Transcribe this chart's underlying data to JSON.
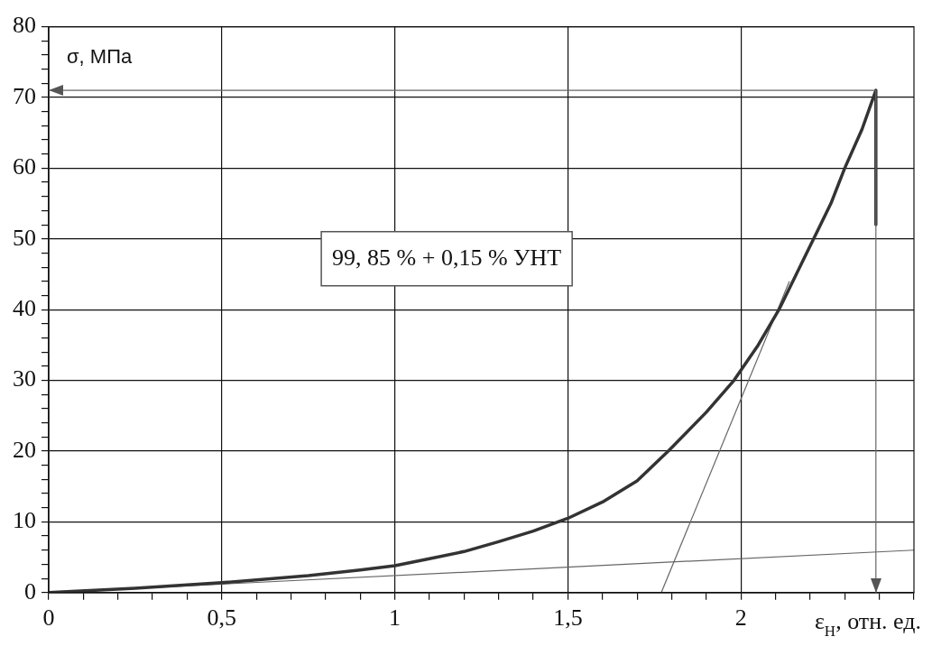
{
  "chart_data": {
    "type": "line",
    "xlabel": "ε$_{Н}$, отн. ед.",
    "ylabel": "σ, МПа",
    "xlim": [
      0,
      2.5
    ],
    "xticks": [
      0,
      {
        "value": 0.1,
        "label": null
      },
      {
        "value": 0.2,
        "label": null
      },
      {
        "value": 0.3,
        "label": null
      },
      {
        "value": 0.4,
        "label": null
      },
      {
        "value": 0.5,
        "label": "0,5"
      },
      {
        "value": 0.6,
        "label": null
      },
      {
        "value": 0.7,
        "label": null
      },
      {
        "value": 0.8,
        "label": null
      },
      {
        "value": 0.9,
        "label": null
      },
      1,
      {
        "value": 1.1,
        "label": null
      },
      {
        "value": 1.2,
        "label": null
      },
      {
        "value": 1.3,
        "label": null
      },
      {
        "value": 1.4,
        "label": null
      },
      {
        "value": 1.5,
        "label": "1,5"
      },
      {
        "value": 1.6,
        "label": null
      },
      {
        "value": 1.7,
        "label": null
      },
      {
        "value": 1.8,
        "label": null
      },
      {
        "value": 1.9,
        "label": null
      },
      2,
      {
        "value": 2.1,
        "label": null
      },
      {
        "value": 2.2,
        "label": null
      },
      {
        "value": 2.3,
        "label": null
      },
      {
        "value": 2.4,
        "label": null
      },
      {
        "value": 2.5,
        "label": null
      }
    ],
    "ylim": [
      0,
      80
    ],
    "yticks": [
      0,
      {
        "value": 2,
        "label": null
      },
      {
        "value": 4,
        "label": null
      },
      {
        "value": 6,
        "label": null
      },
      {
        "value": 8,
        "label": null
      },
      10,
      {
        "value": 12,
        "label": null
      },
      {
        "value": 14,
        "label": null
      },
      {
        "value": 16,
        "label": null
      },
      {
        "value": 18,
        "label": null
      },
      20,
      {
        "value": 22,
        "label": null
      },
      {
        "value": 24,
        "label": null
      },
      {
        "value": 26,
        "label": null
      },
      {
        "value": 28,
        "label": null
      },
      30,
      {
        "value": 32,
        "label": null
      },
      {
        "value": 34,
        "label": null
      },
      {
        "value": 36,
        "label": null
      },
      {
        "value": 38,
        "label": null
      },
      40,
      {
        "value": 42,
        "label": null
      },
      {
        "value": 44,
        "label": null
      },
      {
        "value": 46,
        "label": null
      },
      {
        "value": 48,
        "label": null
      },
      50,
      {
        "value": 52,
        "label": null
      },
      {
        "value": 54,
        "label": null
      },
      {
        "value": 56,
        "label": null
      },
      {
        "value": 58,
        "label": null
      },
      60,
      {
        "value": 62,
        "label": null
      },
      {
        "value": 64,
        "label": null
      },
      {
        "value": 66,
        "label": null
      },
      {
        "value": 68,
        "label": null
      },
      70,
      {
        "value": 72,
        "label": null
      },
      {
        "value": 74,
        "label": null
      },
      {
        "value": 76,
        "label": null
      },
      {
        "value": 78,
        "label": null
      },
      80
    ],
    "grid": true,
    "series": [
      {
        "color": "#333333",
        "x": [
          0,
          0.25,
          0.5,
          0.75,
          0.9,
          1,
          1.1,
          1.2,
          1.3,
          1.4,
          1.5,
          1.6,
          1.7,
          1.79,
          1.9,
          1.98,
          2.05,
          2.11,
          2.16,
          2.21,
          2.26,
          2.3,
          2.35,
          2.39,
          2.39
        ],
        "values": [
          0,
          0.6,
          1.4,
          2.4,
          3.2,
          3.8,
          4.8,
          5.8,
          7.2,
          8.7,
          10.5,
          12.8,
          15.8,
          20,
          25.5,
          30,
          35,
          40,
          45,
          50,
          55,
          60,
          65.5,
          71,
          52
        ]
      },
      {
        "color": "#666666",
        "x": [
          0,
          2.5
        ],
        "values": [
          0,
          6
        ]
      },
      {
        "color": "#666666",
        "x": [
          1.77,
          2.14
        ],
        "values": [
          0,
          44
        ]
      }
    ],
    "ref_lines": [
      {
        "axis": "y",
        "value": 71,
        "color": "#666666"
      },
      {
        "axis": "x",
        "value": 2.39,
        "color": "#666666"
      }
    ],
    "annotations": [
      "99, 85 % + 0,15 % УНТ"
    ]
  }
}
